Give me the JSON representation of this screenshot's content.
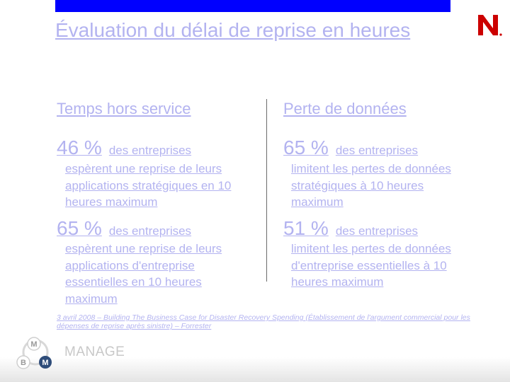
{
  "slide": {
    "title": "Évaluation du délai de reprise en heures",
    "left": {
      "heading": "Temps hors service",
      "stats": [
        {
          "percent": "46 %",
          "suffix": "des entreprises",
          "description": "espèrent une reprise de leurs applications stratégiques en 10 heures maximum"
        },
        {
          "percent": "65 %",
          "suffix": "des entreprises",
          "description": "espèrent une reprise de leurs applications d'entreprise essentielles en 10 heures maximum"
        }
      ]
    },
    "right": {
      "heading": "Perte de données",
      "stats": [
        {
          "percent": "65 %",
          "suffix": "des entreprises",
          "description": "limitent les pertes de données stratégiques à 10 heures maximum"
        },
        {
          "percent": "51 %",
          "suffix": "des entreprises",
          "description": "limitent les pertes de données d'entreprise essentielles à 10 heures maximum"
        }
      ]
    },
    "source": "3 avril 2008 – Building The Business Case for Disaster Recovery Spending (Établissement de l'argument commercial pour les dépenses de reprise après sinistre) – Forrester",
    "footer": {
      "manage_label": "MANAGE",
      "bmm_letters": {
        "top": "M",
        "left": "B",
        "right": "M"
      }
    },
    "colors": {
      "accent": "#0000ff",
      "text": "#b3b3f0",
      "logo_red": "#cc0000",
      "bmm_dark": "#2f4d7a"
    },
    "logo_icon": "novell-n-logo"
  }
}
